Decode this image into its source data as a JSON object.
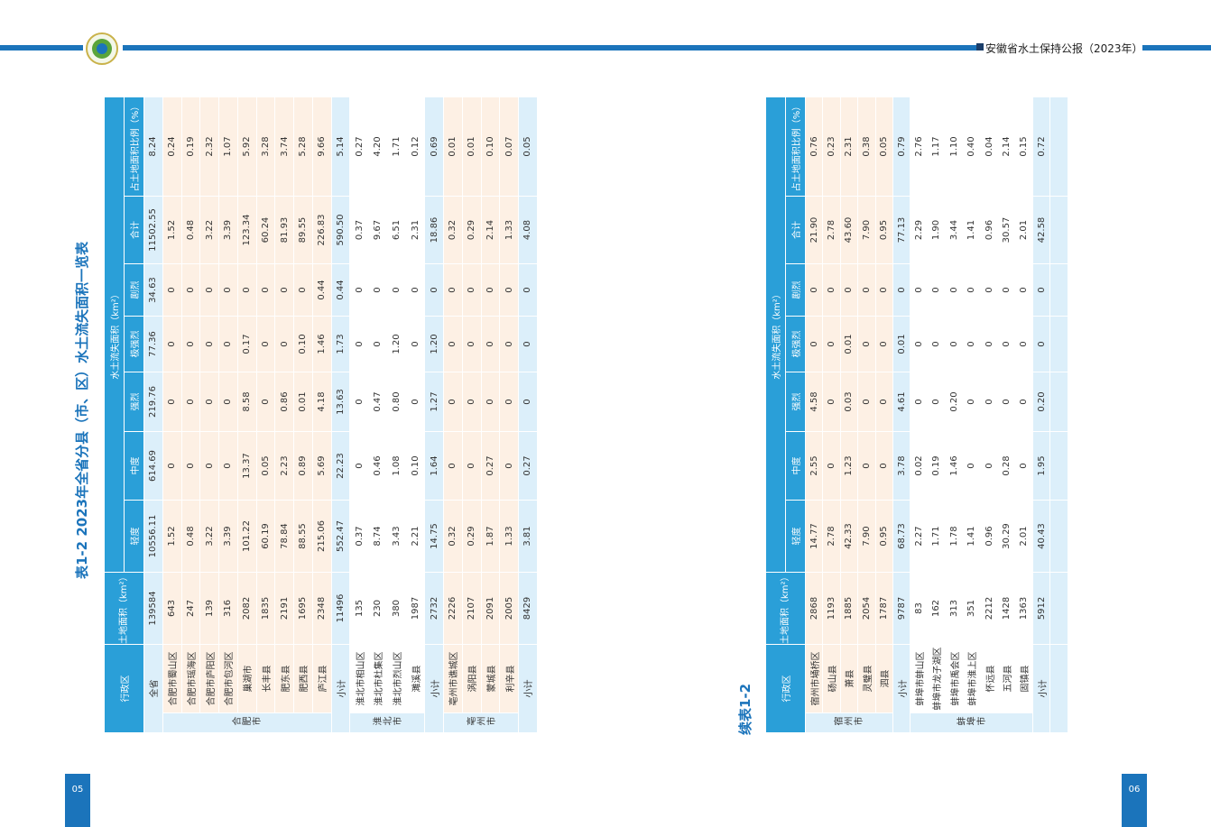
{
  "header": {
    "title": "安徽省水土保持公报（2023年）"
  },
  "columns": {
    "region": "行政区",
    "land": "土地面积（km²）",
    "loss": "水土流失面积（km²）",
    "sub": [
      "轻度",
      "中度",
      "强烈",
      "极强烈",
      "剧烈",
      "合计",
      "占土地面积比例（%）"
    ]
  },
  "pages": [
    {
      "number": "05",
      "caption": "表1-2  2023年全省分县（市、区）水土流失面积一览表",
      "table": {
        "total": {
          "name": "全省",
          "values": [
            "139584",
            "10556.11",
            "614.69",
            "219.76",
            "77.36",
            "34.63",
            "11502.55",
            "8.24"
          ]
        },
        "groups": [
          {
            "name": "合肥市",
            "rows": [
              {
                "name": "合肥市蜀山区",
                "values": [
                  "643",
                  "1.52",
                  "0",
                  "0",
                  "0",
                  "0",
                  "1.52",
                  "0.24"
                ]
              },
              {
                "name": "合肥市瑶海区",
                "values": [
                  "247",
                  "0.48",
                  "0",
                  "0",
                  "0",
                  "0",
                  "0.48",
                  "0.19"
                ]
              },
              {
                "name": "合肥市庐阳区",
                "values": [
                  "139",
                  "3.22",
                  "0",
                  "0",
                  "0",
                  "0",
                  "3.22",
                  "2.32"
                ]
              },
              {
                "name": "合肥市包河区",
                "values": [
                  "316",
                  "3.39",
                  "0",
                  "0",
                  "0",
                  "0",
                  "3.39",
                  "1.07"
                ]
              },
              {
                "name": "巢湖市",
                "values": [
                  "2082",
                  "101.22",
                  "13.37",
                  "8.58",
                  "0.17",
                  "0",
                  "123.34",
                  "5.92"
                ]
              },
              {
                "name": "长丰县",
                "values": [
                  "1835",
                  "60.19",
                  "0.05",
                  "0",
                  "0",
                  "0",
                  "60.24",
                  "3.28"
                ]
              },
              {
                "name": "肥东县",
                "values": [
                  "2191",
                  "78.84",
                  "2.23",
                  "0.86",
                  "0",
                  "0",
                  "81.93",
                  "3.74"
                ]
              },
              {
                "name": "肥西县",
                "values": [
                  "1695",
                  "88.55",
                  "0.89",
                  "0.01",
                  "0.10",
                  "0",
                  "89.55",
                  "5.28"
                ]
              },
              {
                "name": "庐江县",
                "values": [
                  "2348",
                  "215.06",
                  "5.69",
                  "4.18",
                  "1.46",
                  "0.44",
                  "226.83",
                  "9.66"
                ]
              }
            ],
            "subtotal": {
              "name": "小计",
              "values": [
                "11496",
                "552.47",
                "22.23",
                "13.63",
                "1.73",
                "0.44",
                "590.50",
                "5.14"
              ]
            }
          },
          {
            "name": "淮北市",
            "rows": [
              {
                "name": "淮北市相山区",
                "values": [
                  "135",
                  "0.37",
                  "0",
                  "0",
                  "0",
                  "0",
                  "0.37",
                  "0.27"
                ]
              },
              {
                "name": "淮北市杜集区",
                "values": [
                  "230",
                  "8.74",
                  "0.46",
                  "0.47",
                  "0",
                  "0",
                  "9.67",
                  "4.20"
                ]
              },
              {
                "name": "淮北市烈山区",
                "values": [
                  "380",
                  "3.43",
                  "1.08",
                  "0.80",
                  "1.20",
                  "0",
                  "6.51",
                  "1.71"
                ]
              },
              {
                "name": "濉溪县",
                "values": [
                  "1987",
                  "2.21",
                  "0.10",
                  "0",
                  "0",
                  "0",
                  "2.31",
                  "0.12"
                ]
              }
            ],
            "subtotal": {
              "name": "小计",
              "values": [
                "2732",
                "14.75",
                "1.64",
                "1.27",
                "1.20",
                "0",
                "18.86",
                "0.69"
              ]
            }
          },
          {
            "name": "亳州市",
            "rows": [
              {
                "name": "亳州市谯城区",
                "values": [
                  "2226",
                  "0.32",
                  "0",
                  "0",
                  "0",
                  "0",
                  "0.32",
                  "0.01"
                ]
              },
              {
                "name": "涡阳县",
                "values": [
                  "2107",
                  "0.29",
                  "0",
                  "0",
                  "0",
                  "0",
                  "0.29",
                  "0.01"
                ]
              },
              {
                "name": "蒙城县",
                "values": [
                  "2091",
                  "1.87",
                  "0.27",
                  "0",
                  "0",
                  "0",
                  "2.14",
                  "0.10"
                ]
              },
              {
                "name": "利辛县",
                "values": [
                  "2005",
                  "1.33",
                  "0",
                  "0",
                  "0",
                  "0",
                  "1.33",
                  "0.07"
                ]
              }
            ],
            "subtotal": {
              "name": "小计",
              "values": [
                "8429",
                "3.81",
                "0.27",
                "0",
                "0",
                "0",
                "4.08",
                "0.05"
              ]
            }
          }
        ]
      }
    },
    {
      "number": "06",
      "caption": "续表1-2",
      "table": {
        "groups": [
          {
            "name": "宿州市",
            "rows": [
              {
                "name": "宿州市埇桥区",
                "values": [
                  "2868",
                  "14.77",
                  "2.55",
                  "4.58",
                  "0",
                  "0",
                  "21.90",
                  "0.76"
                ]
              },
              {
                "name": "砀山县",
                "values": [
                  "1193",
                  "2.78",
                  "0",
                  "0",
                  "0",
                  "0",
                  "2.78",
                  "0.23"
                ]
              },
              {
                "name": "萧县",
                "values": [
                  "1885",
                  "42.33",
                  "1.23",
                  "0.03",
                  "0.01",
                  "0",
                  "43.60",
                  "2.31"
                ]
              },
              {
                "name": "灵璧县",
                "values": [
                  "2054",
                  "7.90",
                  "0",
                  "0",
                  "0",
                  "0",
                  "7.90",
                  "0.38"
                ]
              },
              {
                "name": "泗县",
                "values": [
                  "1787",
                  "0.95",
                  "0",
                  "0",
                  "0",
                  "0",
                  "0.95",
                  "0.05"
                ]
              }
            ],
            "subtotal": {
              "name": "小计",
              "values": [
                "9787",
                "68.73",
                "3.78",
                "4.61",
                "0.01",
                "0",
                "77.13",
                "0.79"
              ]
            }
          },
          {
            "name": "蚌埠市",
            "rows": [
              {
                "name": "蚌埠市蚌山区",
                "values": [
                  "83",
                  "2.27",
                  "0.02",
                  "0",
                  "0",
                  "0",
                  "2.29",
                  "2.76"
                ]
              },
              {
                "name": "蚌埠市龙子湖区",
                "values": [
                  "162",
                  "1.71",
                  "0.19",
                  "0",
                  "0",
                  "0",
                  "1.90",
                  "1.17"
                ]
              },
              {
                "name": "蚌埠市禹会区",
                "values": [
                  "313",
                  "1.78",
                  "1.46",
                  "0.20",
                  "0",
                  "0",
                  "3.44",
                  "1.10"
                ]
              },
              {
                "name": "蚌埠市淮上区",
                "values": [
                  "351",
                  "1.41",
                  "0",
                  "0",
                  "0",
                  "0",
                  "1.41",
                  "0.40"
                ]
              },
              {
                "name": "怀远县",
                "values": [
                  "2212",
                  "0.96",
                  "0",
                  "0",
                  "0",
                  "0",
                  "0.96",
                  "0.04"
                ]
              },
              {
                "name": "五河县",
                "values": [
                  "1428",
                  "30.29",
                  "0.28",
                  "0",
                  "0",
                  "0",
                  "30.57",
                  "2.14"
                ]
              },
              {
                "name": "固镇县",
                "values": [
                  "1363",
                  "2.01",
                  "0",
                  "0",
                  "0",
                  "0",
                  "2.01",
                  "0.15"
                ]
              }
            ],
            "subtotal": {
              "name": "小计",
              "values": [
                "5912",
                "40.43",
                "1.95",
                "0.20",
                "0",
                "0",
                "42.58",
                "0.72"
              ]
            }
          }
        ]
      }
    }
  ]
}
